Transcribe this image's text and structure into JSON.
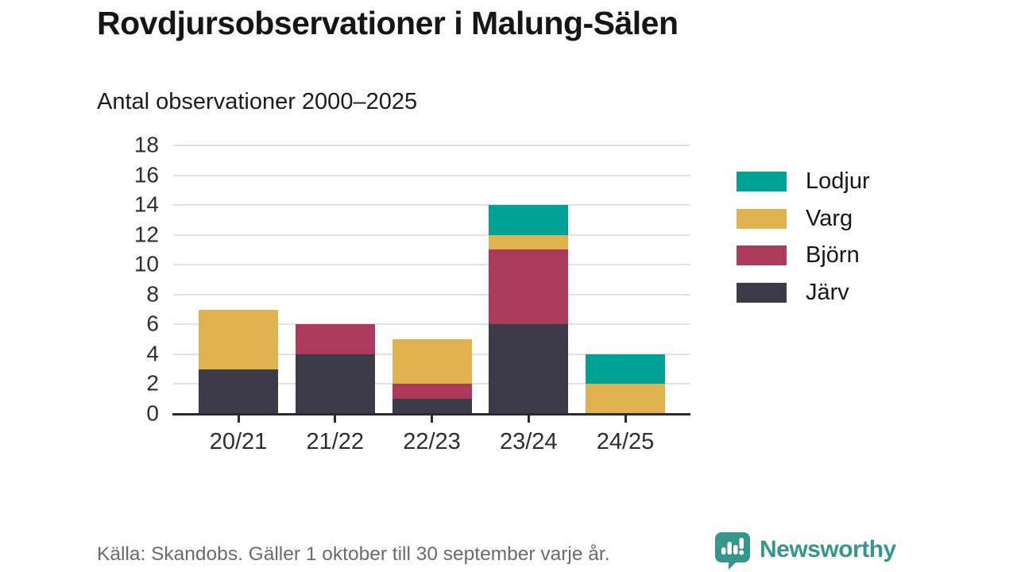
{
  "header": {
    "title": "Rovdjursobservationer i Malung-Sälen",
    "subtitle": "Antal observationer 2000–2025"
  },
  "chart_data": {
    "type": "bar",
    "stacked": true,
    "title": "Rovdjursobservationer i Malung-Sälen",
    "subtitle": "Antal observationer 2000–2025",
    "categories": [
      "20/21",
      "21/22",
      "22/23",
      "23/24",
      "24/25"
    ],
    "series": [
      {
        "name": "Järv",
        "color": "#3c3949",
        "values": [
          3,
          4,
          1,
          6,
          0
        ]
      },
      {
        "name": "Björn",
        "color": "#ac3a5d",
        "values": [
          0,
          2,
          1,
          5,
          0
        ]
      },
      {
        "name": "Varg",
        "color": "#dfb14f",
        "values": [
          4,
          0,
          3,
          1,
          2
        ]
      },
      {
        "name": "Lodjur",
        "color": "#00a296",
        "values": [
          0,
          0,
          0,
          2,
          2
        ]
      }
    ],
    "totals": [
      7,
      6,
      5,
      14,
      4
    ],
    "xlabel": "",
    "ylabel": "",
    "ylim": [
      0,
      18
    ],
    "yticks": [
      0,
      2,
      4,
      6,
      8,
      10,
      12,
      14,
      16,
      18
    ],
    "grid": true,
    "legend_position": "right",
    "legend_order": [
      "Lodjur",
      "Varg",
      "Björn",
      "Järv"
    ]
  },
  "footer": {
    "source": "Källa: Skandobs. Gäller 1 oktober till 30 september varje år.",
    "brand": "Newsworthy"
  },
  "colors": {
    "lodjur": "#00a296",
    "varg": "#dfb14f",
    "bjorn": "#ac3a5d",
    "jarv": "#3c3949",
    "gridline": "#e1e1e1",
    "axis": "#2b2b2b",
    "brand_teal": "#35968e",
    "source_gray": "#6b6b6b"
  }
}
